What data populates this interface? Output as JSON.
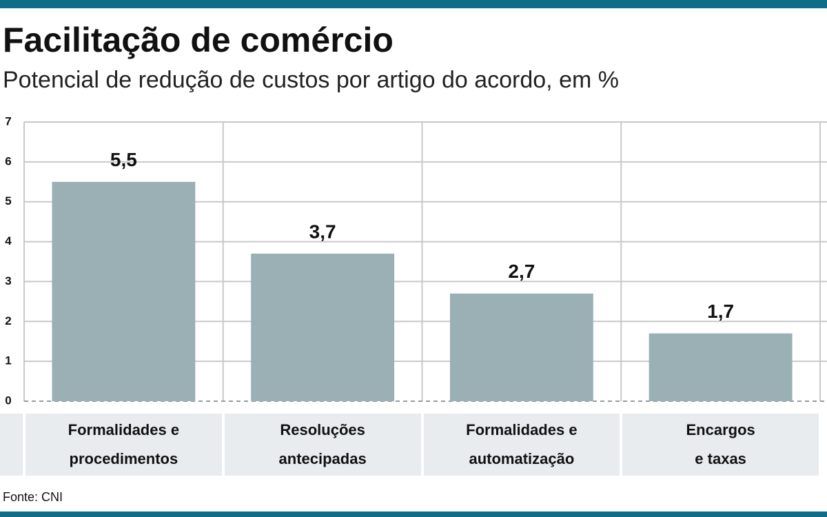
{
  "chart_data": {
    "type": "bar",
    "title": "Facilitação de comércio",
    "subtitle": "Potencial de redução de custos por artigo do acordo, em %",
    "categories": [
      "Formalidades e\nprocedimentos",
      "Resoluções\nantecipadas",
      "Formalidades e\nautomatização",
      "Encargos\ne taxas"
    ],
    "values": [
      5.5,
      3.7,
      2.7,
      1.7
    ],
    "value_labels": [
      "5,5",
      "3,7",
      "2,7",
      "1,7"
    ],
    "color": "#9ab0b5",
    "ylim": [
      0,
      7
    ],
    "yticks": [
      0,
      1,
      2,
      3,
      4,
      5,
      6,
      7
    ],
    "grid": true,
    "source": "Fonte: CNI"
  }
}
